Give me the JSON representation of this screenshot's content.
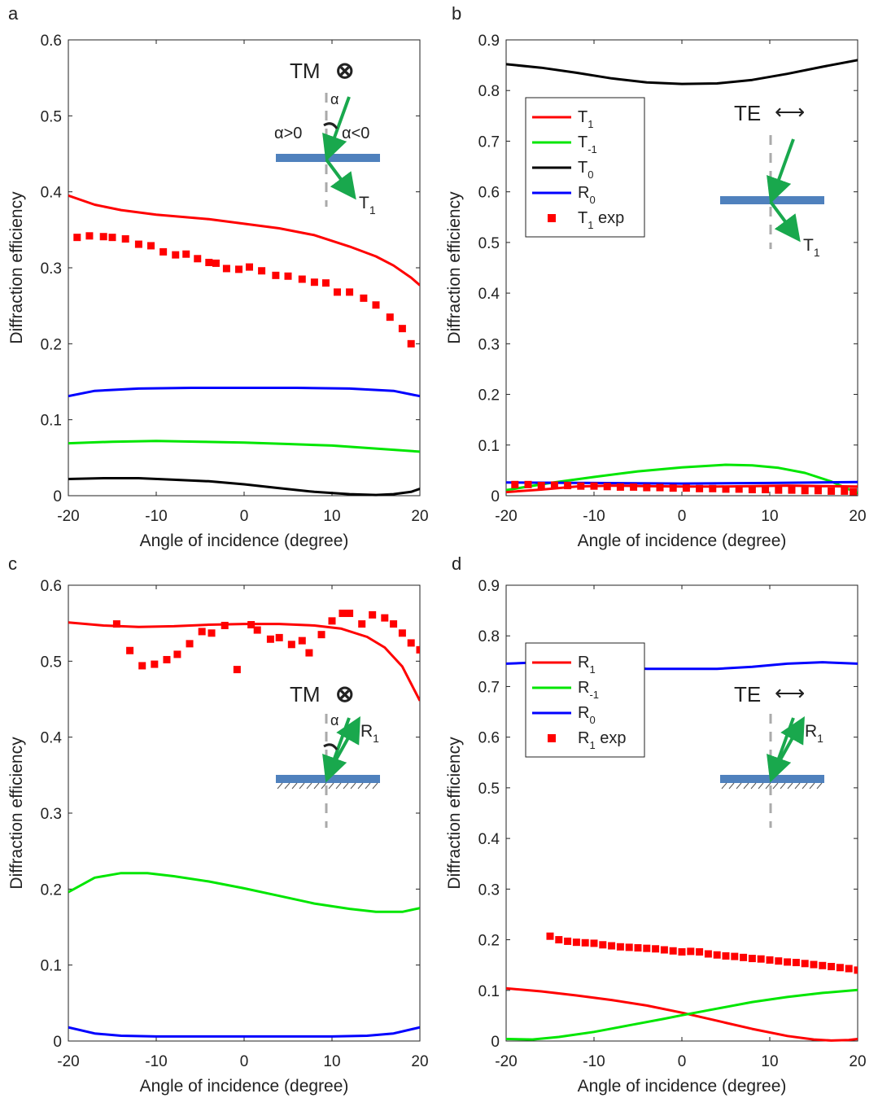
{
  "colors": {
    "red": "#ff0000",
    "green": "#00e600",
    "black": "#000000",
    "blue": "#0000ff",
    "arrow": "#19a84d",
    "substrate": "#4f81bd",
    "dash": "#aaaaaa"
  },
  "chart_data": [
    {
      "panel_label": "a",
      "type": "line",
      "xlabel": "Angle of incidence (degree)",
      "ylabel": "Diffraction efficiency",
      "xlim": [
        -20,
        20
      ],
      "ylim": [
        0,
        0.6
      ],
      "xticks": [
        -20,
        -10,
        0,
        10,
        20
      ],
      "yticks": [
        0,
        0.1,
        0.2,
        0.3,
        0.4,
        0.5,
        0.6
      ],
      "ytick_labels": [
        "0",
        "0.1",
        "0.2",
        "0.3",
        "0.4",
        "0.5",
        "0.6"
      ],
      "grid": false,
      "legend": null,
      "series": [
        {
          "color": "red",
          "style": "line",
          "x": [
            -20,
            -17,
            -14,
            -10,
            -7,
            -4,
            0,
            4,
            8,
            12,
            15,
            17,
            19,
            20
          ],
          "y": [
            0.395,
            0.383,
            0.376,
            0.37,
            0.367,
            0.364,
            0.358,
            0.352,
            0.343,
            0.328,
            0.315,
            0.303,
            0.287,
            0.277
          ]
        },
        {
          "color": "blue",
          "style": "line",
          "x": [
            -20,
            -17,
            -12,
            -6,
            0,
            6,
            12,
            17,
            20
          ],
          "y": [
            0.131,
            0.138,
            0.141,
            0.142,
            0.142,
            0.142,
            0.141,
            0.138,
            0.131
          ]
        },
        {
          "color": "green",
          "style": "line",
          "x": [
            -20,
            -15,
            -10,
            -5,
            0,
            5,
            10,
            15,
            20
          ],
          "y": [
            0.069,
            0.071,
            0.072,
            0.071,
            0.07,
            0.068,
            0.066,
            0.062,
            0.058
          ]
        },
        {
          "color": "black",
          "style": "line",
          "x": [
            -20,
            -16,
            -12,
            -8,
            -4,
            0,
            4,
            8,
            12,
            15,
            17,
            19,
            20
          ],
          "y": [
            0.022,
            0.023,
            0.023,
            0.021,
            0.019,
            0.015,
            0.01,
            0.005,
            0.002,
            0.001,
            0.002,
            0.005,
            0.009
          ]
        },
        {
          "color": "red",
          "style": "markers",
          "x": [
            -19,
            -17.6,
            -16,
            -15,
            -13.5,
            -12,
            -10.6,
            -9.2,
            -7.8,
            -6.6,
            -5.3,
            -4,
            -3.2,
            -2,
            -0.6,
            0.6,
            2,
            3.6,
            5,
            6.6,
            8,
            9.3,
            10.6,
            12,
            13.6,
            15,
            16.6,
            18,
            19
          ],
          "y": [
            0.34,
            0.342,
            0.341,
            0.34,
            0.338,
            0.331,
            0.329,
            0.321,
            0.317,
            0.318,
            0.312,
            0.307,
            0.306,
            0.299,
            0.298,
            0.301,
            0.296,
            0.29,
            0.289,
            0.285,
            0.281,
            0.28,
            0.268,
            0.268,
            0.26,
            0.251,
            0.235,
            0.22,
            0.2
          ]
        }
      ],
      "inset": {
        "pol": "TM",
        "pol_symbol": "⊗",
        "alpha": "α",
        "alpha_pos": "α>0",
        "alpha_neg": "α<0",
        "order": "T",
        "order_sub": "1"
      }
    },
    {
      "panel_label": "b",
      "type": "line",
      "xlabel": "Angle of incidence (degree)",
      "ylabel": "Diffraction efficiency",
      "xlim": [
        -20,
        20
      ],
      "ylim": [
        0,
        0.9
      ],
      "xticks": [
        -20,
        -10,
        0,
        10,
        20
      ],
      "yticks": [
        0,
        0.1,
        0.2,
        0.3,
        0.4,
        0.5,
        0.6,
        0.7,
        0.8,
        0.9
      ],
      "ytick_labels": [
        "0",
        "0.1",
        "0.2",
        "0.3",
        "0.4",
        "0.5",
        "0.6",
        "0.7",
        "0.8",
        "0.9"
      ],
      "grid": false,
      "legend": {
        "position": "upper-left",
        "entries": [
          {
            "label": "T",
            "sub": "1",
            "suffix": "",
            "color": "red",
            "style": "line"
          },
          {
            "label": "T",
            "sub": "-1",
            "suffix": "",
            "color": "green",
            "style": "line"
          },
          {
            "label": "T",
            "sub": "0",
            "suffix": "",
            "color": "black",
            "style": "line"
          },
          {
            "label": "R",
            "sub": "0",
            "suffix": "",
            "color": "blue",
            "style": "line"
          },
          {
            "label": "T",
            "sub": "1",
            "suffix": " exp",
            "color": "red",
            "style": "marker"
          }
        ]
      },
      "series": [
        {
          "color": "black",
          "style": "line",
          "x": [
            -20,
            -16,
            -12,
            -8,
            -4,
            0,
            4,
            8,
            12,
            16,
            20
          ],
          "y": [
            0.852,
            0.845,
            0.835,
            0.824,
            0.816,
            0.813,
            0.814,
            0.821,
            0.833,
            0.847,
            0.86
          ]
        },
        {
          "color": "green",
          "style": "line",
          "x": [
            -20,
            -15,
            -10,
            -5,
            0,
            5,
            8,
            11,
            14,
            17,
            20
          ],
          "y": [
            0.011,
            0.025,
            0.037,
            0.048,
            0.056,
            0.061,
            0.06,
            0.055,
            0.045,
            0.028,
            0.005
          ]
        },
        {
          "color": "blue",
          "style": "line",
          "x": [
            -20,
            -10,
            0,
            10,
            20
          ],
          "y": [
            0.026,
            0.025,
            0.024,
            0.025,
            0.027
          ]
        },
        {
          "color": "red",
          "style": "line",
          "x": [
            -20,
            -16,
            -12,
            -8,
            -4,
            0,
            4,
            8,
            12,
            16,
            20
          ],
          "y": [
            0.007,
            0.012,
            0.018,
            0.02,
            0.019,
            0.018,
            0.018,
            0.019,
            0.02,
            0.019,
            0.018
          ]
        },
        {
          "color": "red",
          "style": "markers",
          "x": [
            -19,
            -17.5,
            -16,
            -14.5,
            -13,
            -11.5,
            -10,
            -8.5,
            -7,
            -5.5,
            -4,
            -2.5,
            -1,
            0.5,
            2,
            3.5,
            5,
            6.5,
            8,
            9.5,
            11,
            12.5,
            14,
            15.5,
            17,
            18.5,
            19.5
          ],
          "y": [
            0.022,
            0.022,
            0.02,
            0.021,
            0.02,
            0.019,
            0.019,
            0.018,
            0.017,
            0.017,
            0.016,
            0.016,
            0.015,
            0.015,
            0.014,
            0.014,
            0.013,
            0.013,
            0.012,
            0.012,
            0.011,
            0.011,
            0.01,
            0.01,
            0.009,
            0.009,
            0.008
          ]
        }
      ],
      "inset": {
        "pol": "TE",
        "pol_symbol": "⟷",
        "order": "T",
        "order_sub": "1"
      }
    },
    {
      "panel_label": "c",
      "type": "line",
      "xlabel": "Angle of incidence (degree)",
      "ylabel": "Diffraction efficiency",
      "xlim": [
        -20,
        20
      ],
      "ylim": [
        0,
        0.6
      ],
      "xticks": [
        -20,
        -10,
        0,
        10,
        20
      ],
      "yticks": [
        0,
        0.1,
        0.2,
        0.3,
        0.4,
        0.5,
        0.6
      ],
      "ytick_labels": [
        "0",
        "0.1",
        "0.2",
        "0.3",
        "0.4",
        "0.5",
        "0.6"
      ],
      "grid": false,
      "legend": null,
      "series": [
        {
          "color": "red",
          "style": "line",
          "x": [
            -20,
            -16,
            -12,
            -8,
            -4,
            0,
            4,
            8,
            11,
            14,
            16,
            18,
            20
          ],
          "y": [
            0.551,
            0.547,
            0.545,
            0.546,
            0.548,
            0.549,
            0.549,
            0.547,
            0.543,
            0.532,
            0.518,
            0.493,
            0.448
          ]
        },
        {
          "color": "green",
          "style": "line",
          "x": [
            -20,
            -17,
            -14,
            -11,
            -8,
            -4,
            0,
            4,
            8,
            12,
            15,
            18,
            20
          ],
          "y": [
            0.196,
            0.215,
            0.221,
            0.221,
            0.217,
            0.21,
            0.201,
            0.191,
            0.181,
            0.174,
            0.17,
            0.17,
            0.175
          ]
        },
        {
          "color": "blue",
          "style": "line",
          "x": [
            -20,
            -17,
            -14,
            -10,
            -5,
            0,
            5,
            10,
            14,
            17,
            20
          ],
          "y": [
            0.018,
            0.01,
            0.007,
            0.006,
            0.006,
            0.006,
            0.006,
            0.006,
            0.007,
            0.01,
            0.018
          ]
        },
        {
          "color": "red",
          "style": "markers",
          "x": [
            -14.5,
            -13,
            -11.6,
            -10.2,
            -8.8,
            -7.6,
            -6.2,
            -4.8,
            -3.7,
            -2.2,
            -0.8,
            0.8,
            1.5,
            3,
            4,
            5.4,
            6.6,
            7.4,
            8.8,
            10,
            11.2,
            12,
            13.4,
            14.6,
            16,
            17,
            18,
            19,
            20
          ],
          "y": [
            0.549,
            0.514,
            0.494,
            0.496,
            0.502,
            0.509,
            0.523,
            0.539,
            0.537,
            0.547,
            0.489,
            0.548,
            0.541,
            0.529,
            0.531,
            0.522,
            0.527,
            0.511,
            0.535,
            0.553,
            0.563,
            0.563,
            0.549,
            0.561,
            0.557,
            0.549,
            0.537,
            0.524,
            0.515
          ]
        }
      ],
      "inset": {
        "pol": "TM",
        "pol_symbol": "⊗",
        "alpha": "α",
        "order": "R",
        "order_sub": "1"
      }
    },
    {
      "panel_label": "d",
      "type": "line",
      "xlabel": "Angle of incidence (degree)",
      "ylabel": "Diffraction efficiency",
      "xlim": [
        -20,
        20
      ],
      "ylim": [
        0,
        0.9
      ],
      "xticks": [
        -20,
        -10,
        0,
        10,
        20
      ],
      "yticks": [
        0,
        0.1,
        0.2,
        0.3,
        0.4,
        0.5,
        0.6,
        0.7,
        0.8,
        0.9
      ],
      "ytick_labels": [
        "0",
        "0.1",
        "0.2",
        "0.3",
        "0.4",
        "0.5",
        "0.6",
        "0.7",
        "0.8",
        "0.9"
      ],
      "grid": false,
      "legend": {
        "position": "upper-left",
        "entries": [
          {
            "label": "R",
            "sub": "1",
            "suffix": "",
            "color": "red",
            "style": "line"
          },
          {
            "label": "R",
            "sub": "-1",
            "suffix": "",
            "color": "green",
            "style": "line"
          },
          {
            "label": "R",
            "sub": "0",
            "suffix": "",
            "color": "blue",
            "style": "line"
          },
          {
            "label": "R",
            "sub": "1",
            "suffix": " exp",
            "color": "red",
            "style": "marker"
          }
        ]
      },
      "series": [
        {
          "color": "blue",
          "style": "line",
          "x": [
            -20,
            -16,
            -12,
            -8,
            -4,
            0,
            4,
            8,
            12,
            16,
            20
          ],
          "y": [
            0.745,
            0.748,
            0.745,
            0.739,
            0.735,
            0.735,
            0.735,
            0.739,
            0.745,
            0.748,
            0.745
          ]
        },
        {
          "color": "red",
          "style": "line",
          "x": [
            -20,
            -16,
            -12,
            -8,
            -4,
            0,
            4,
            8,
            12,
            15,
            17,
            19,
            20
          ],
          "y": [
            0.104,
            0.098,
            0.09,
            0.081,
            0.07,
            0.056,
            0.04,
            0.024,
            0.01,
            0.003,
            0.001,
            0.002,
            0.004
          ]
        },
        {
          "color": "green",
          "style": "line",
          "x": [
            -20,
            -17,
            -14,
            -10,
            -6,
            -2,
            0,
            4,
            8,
            12,
            16,
            20
          ],
          "y": [
            0.004,
            0.003,
            0.008,
            0.018,
            0.031,
            0.044,
            0.051,
            0.064,
            0.077,
            0.087,
            0.095,
            0.101
          ]
        },
        {
          "color": "red",
          "style": "markers",
          "x": [
            -15,
            -14,
            -13,
            -12,
            -11,
            -10,
            -9,
            -8,
            -7,
            -6,
            -5,
            -4,
            -3,
            -2,
            -1,
            0,
            1,
            2,
            3,
            4,
            5,
            6,
            7,
            8,
            9,
            10,
            11,
            12,
            13,
            14,
            15,
            16,
            17,
            18,
            19,
            20
          ],
          "y": [
            0.207,
            0.2,
            0.197,
            0.195,
            0.194,
            0.193,
            0.19,
            0.188,
            0.186,
            0.185,
            0.184,
            0.183,
            0.182,
            0.18,
            0.178,
            0.176,
            0.177,
            0.176,
            0.172,
            0.17,
            0.168,
            0.167,
            0.165,
            0.163,
            0.162,
            0.16,
            0.158,
            0.156,
            0.155,
            0.153,
            0.151,
            0.149,
            0.147,
            0.145,
            0.143,
            0.14
          ]
        }
      ],
      "inset": {
        "pol": "TE",
        "pol_symbol": "⟷",
        "order": "R",
        "order_sub": "1"
      }
    }
  ]
}
